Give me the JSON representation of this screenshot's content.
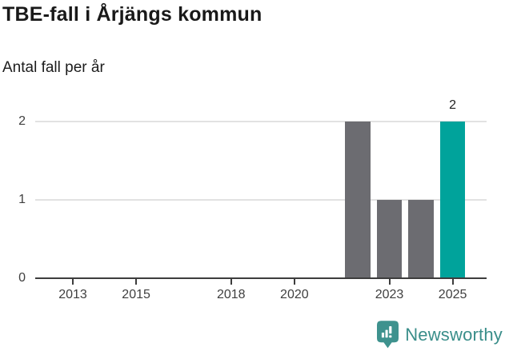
{
  "header": {
    "title": "TBE-fall i Årjängs kommun",
    "subtitle": "Antal fall per år"
  },
  "chart_data": {
    "type": "bar",
    "title": "TBE-fall i Årjängs kommun",
    "subtitle": "Antal fall per år",
    "xlabel": "",
    "ylabel": "Antal fall per år",
    "x_ticks": [
      2013,
      2015,
      2018,
      2020,
      2023,
      2025
    ],
    "y_ticks": [
      0,
      1,
      2
    ],
    "ylim": [
      0,
      2
    ],
    "xlim": [
      2011.8,
      2026.1
    ],
    "grid": true,
    "legend": "none",
    "bars": [
      {
        "year": 2022,
        "value": 2,
        "color": "#6c6c71"
      },
      {
        "year": 2023,
        "value": 1,
        "color": "#6c6c71"
      },
      {
        "year": 2024,
        "value": 1,
        "color": "#6c6c71"
      },
      {
        "year": 2025,
        "value": 2,
        "color": "#00a39b",
        "value_label": "2"
      }
    ]
  },
  "footer": {
    "brand": "Newsworthy",
    "logo_icon": "bar-chart-speech-bubble-icon",
    "brand_color": "#3a8e8a",
    "icon_color": "#3e928e"
  },
  "colors": {
    "bar_default": "#6c6c71",
    "bar_highlight": "#00a39b",
    "axis": "#3d3d3d",
    "grid": "#e2e2e2",
    "title_text": "#191919",
    "tick_text": "#3f3f3f",
    "background": "#ffffff"
  }
}
